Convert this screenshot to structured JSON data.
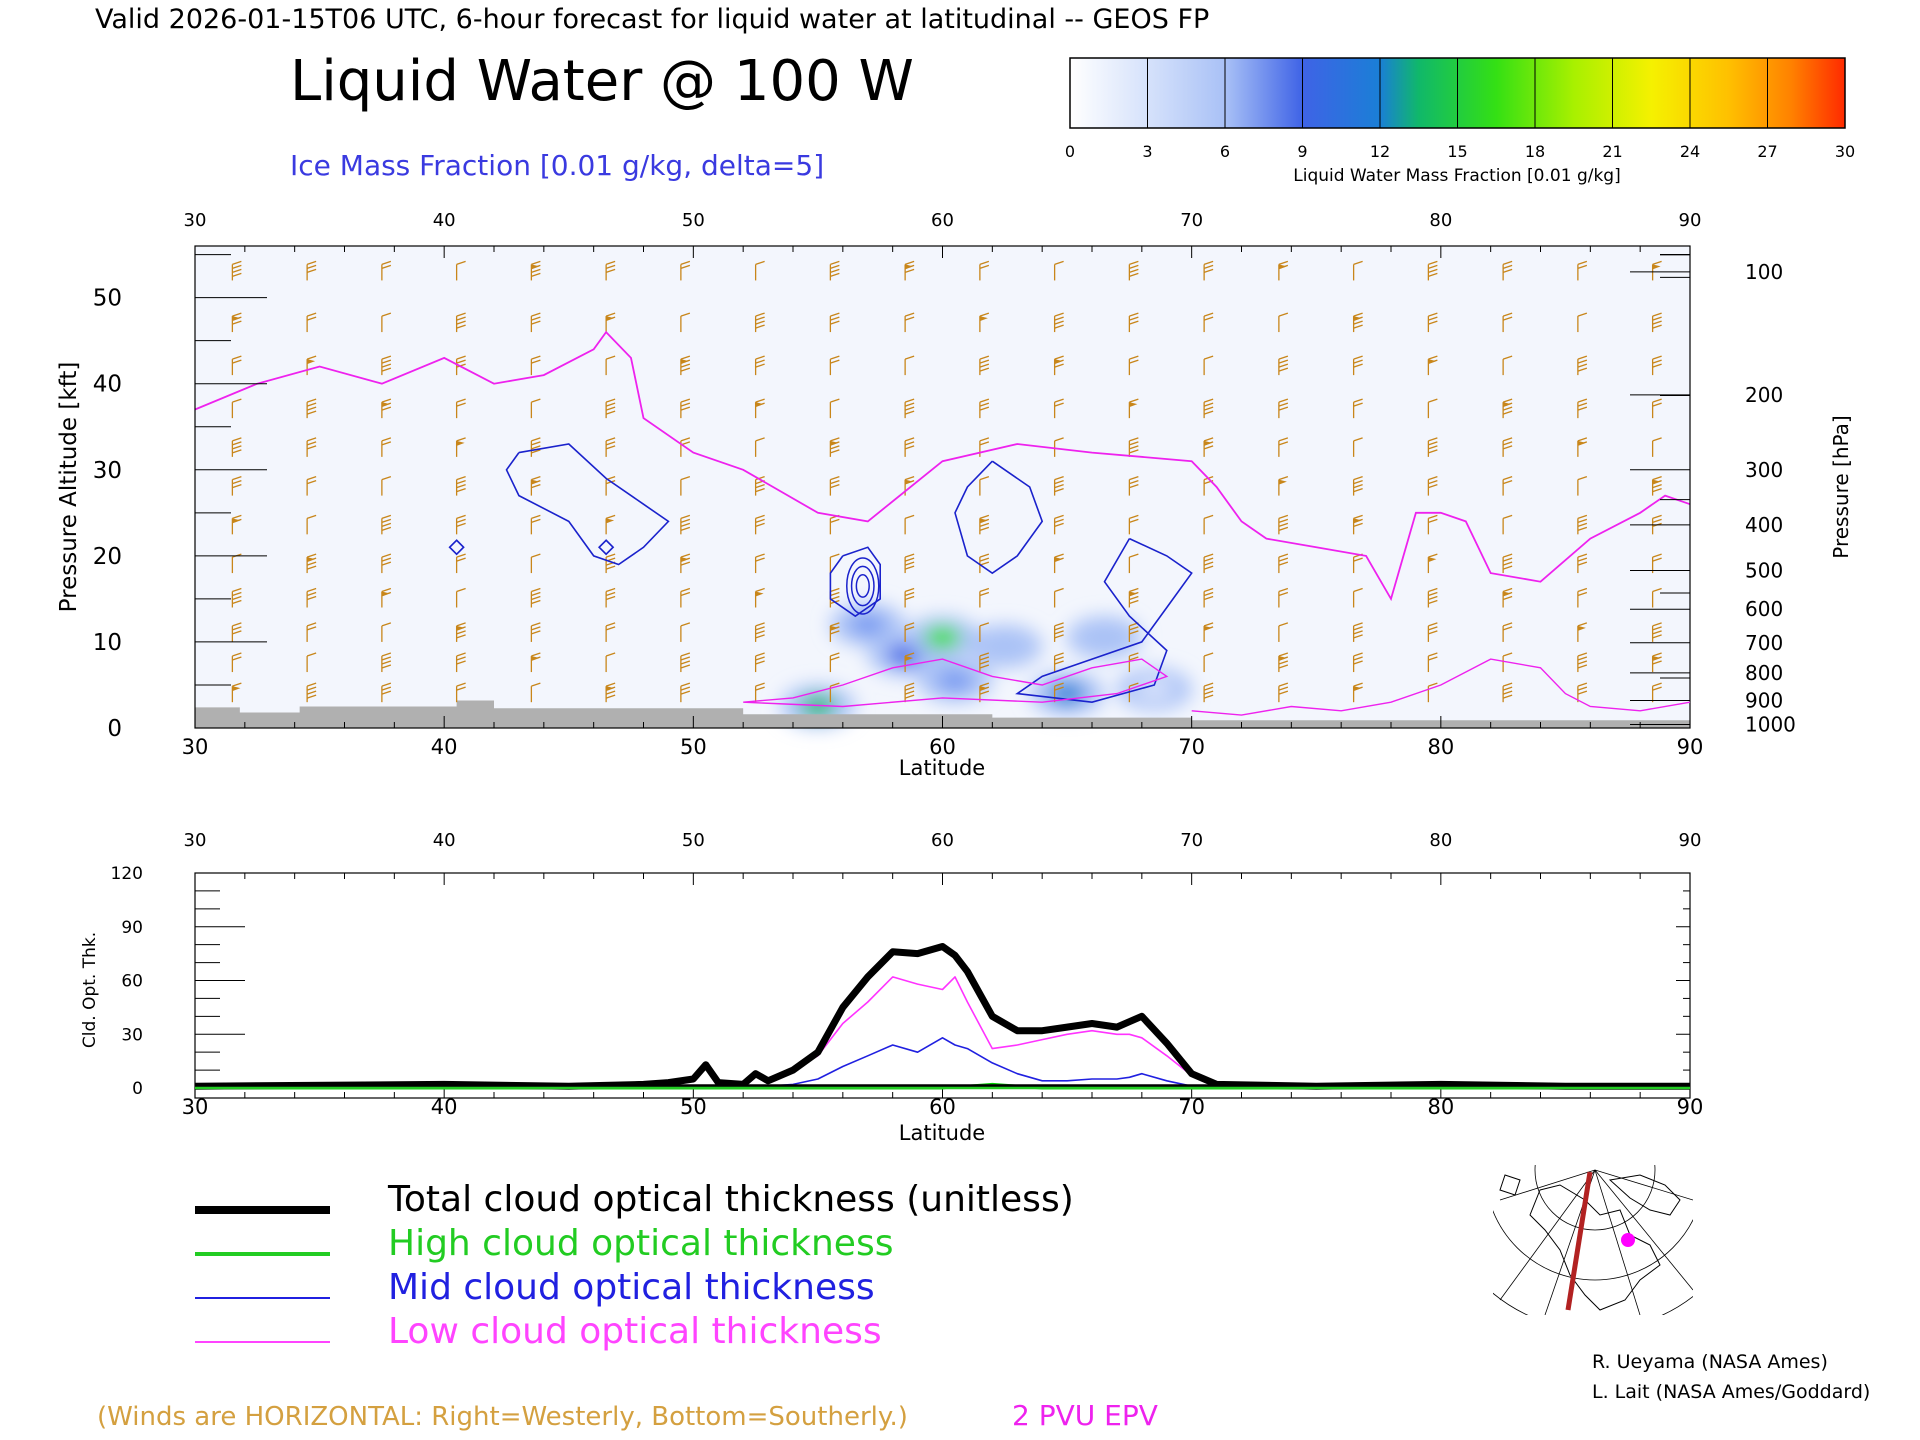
{
  "header": {
    "valid_line": "Valid 2026-01-15T06 UTC, 6-hour forecast for liquid water at latitudinal -- GEOS FP",
    "main_title": "Liquid Water @ 100 W",
    "contour_label": "Ice Mass Fraction [0.01 g/kg, delta=5]"
  },
  "colorbar": {
    "ticks": [
      "0",
      "3",
      "6",
      "9",
      "12",
      "15",
      "18",
      "21",
      "24",
      "27",
      "30"
    ],
    "label": "Liquid Water Mass Fraction [0.01 g/kg]",
    "colors": [
      "#f4f7fe",
      "#d8e3fb",
      "#a9c1f6",
      "#7799f0",
      "#3f63e6",
      "#1a7fd6",
      "#10b86a",
      "#34e014",
      "#a8f000",
      "#f5f100",
      "#ffd400",
      "#ff9f00",
      "#ff6a00",
      "#ff2a00"
    ]
  },
  "chart_data": [
    {
      "type": "heatmap",
      "title": "Liquid Water @ 100 W",
      "xlabel": "Latitude",
      "ylabel_left": "Pressure Altitude [kft]",
      "ylabel_right": "Pressure [hPa]",
      "xlim": [
        30,
        90
      ],
      "ylim": [
        0,
        56
      ],
      "x_ticks": [
        "30",
        "40",
        "50",
        "60",
        "70",
        "80",
        "90"
      ],
      "y_ticks_left": [
        "0",
        "10",
        "20",
        "30",
        "40",
        "50"
      ],
      "y_ticks_right": [
        "100",
        "200",
        "300",
        "400",
        "500",
        "600",
        "700",
        "800",
        "900",
        "1000"
      ],
      "liquid_water_blobs": [
        {
          "lat": 57.0,
          "alt": 12.0,
          "value": 7
        },
        {
          "lat": 58.5,
          "alt": 8.5,
          "value": 9
        },
        {
          "lat": 60.0,
          "alt": 10.5,
          "value": 15
        },
        {
          "lat": 60.5,
          "alt": 5.5,
          "value": 7
        },
        {
          "lat": 62.5,
          "alt": 9.5,
          "value": 5
        },
        {
          "lat": 65.0,
          "alt": 4.0,
          "value": 12
        },
        {
          "lat": 66.5,
          "alt": 10.5,
          "value": 4
        },
        {
          "lat": 55.0,
          "alt": 2.5,
          "value": 13
        },
        {
          "lat": 68.5,
          "alt": 4.5,
          "value": 3
        }
      ],
      "epv_2pvu_line": [
        [
          30,
          37
        ],
        [
          32.5,
          40
        ],
        [
          35,
          42
        ],
        [
          37.5,
          40
        ],
        [
          40,
          43
        ],
        [
          42,
          40
        ],
        [
          44,
          41
        ],
        [
          46,
          44
        ],
        [
          46.5,
          46
        ],
        [
          47.5,
          43
        ],
        [
          48,
          36
        ],
        [
          50,
          32
        ],
        [
          52,
          30
        ],
        [
          55,
          25
        ],
        [
          57,
          24
        ],
        [
          60,
          31
        ],
        [
          63,
          33
        ],
        [
          66,
          32
        ],
        [
          70,
          31
        ],
        [
          71,
          28
        ],
        [
          72,
          24
        ],
        [
          73,
          22
        ],
        [
          75,
          21
        ],
        [
          77,
          20
        ],
        [
          78,
          15
        ],
        [
          79,
          25
        ],
        [
          80,
          25
        ],
        [
          81,
          24
        ],
        [
          82,
          18
        ],
        [
          84,
          17
        ],
        [
          86,
          22
        ],
        [
          88,
          25
        ],
        [
          89,
          27
        ],
        [
          90,
          26
        ]
      ],
      "ice_contours": [
        [
          [
            43,
            32
          ],
          [
            45,
            33
          ],
          [
            46.5,
            29
          ],
          [
            48,
            26
          ],
          [
            49,
            24
          ],
          [
            48,
            21
          ],
          [
            47,
            19
          ],
          [
            46,
            20
          ],
          [
            45,
            24
          ],
          [
            43,
            27
          ],
          [
            42.5,
            30
          ],
          [
            43,
            32
          ]
        ],
        [
          [
            56,
            20
          ],
          [
            57,
            21
          ],
          [
            57.5,
            19
          ],
          [
            57.5,
            15
          ],
          [
            56.5,
            13
          ],
          [
            55.5,
            15
          ],
          [
            55.5,
            18
          ],
          [
            56,
            20
          ]
        ],
        [
          [
            62,
            31
          ],
          [
            63.5,
            28
          ],
          [
            64,
            24
          ],
          [
            63,
            20
          ],
          [
            62,
            18
          ],
          [
            61,
            20
          ],
          [
            60.5,
            25
          ],
          [
            61,
            28
          ],
          [
            62,
            31
          ]
        ],
        [
          [
            67.5,
            22
          ],
          [
            69,
            20
          ],
          [
            70,
            18
          ],
          [
            69,
            14
          ],
          [
            68,
            10
          ],
          [
            66,
            8
          ],
          [
            64,
            6
          ],
          [
            63,
            4
          ],
          [
            66,
            3
          ],
          [
            68.5,
            5
          ],
          [
            69,
            9
          ],
          [
            67.5,
            13
          ],
          [
            66.5,
            17
          ],
          [
            67.5,
            22
          ]
        ]
      ],
      "wind_barb_spacing_deg": 3,
      "ground_level_kft": 1.5
    },
    {
      "type": "line",
      "xlabel": "Latitude",
      "ylabel": "Cld. Opt. Thk.",
      "xlim": [
        30,
        90
      ],
      "ylim": [
        0,
        120
      ],
      "x_ticks": [
        "30",
        "40",
        "50",
        "60",
        "70",
        "80",
        "90"
      ],
      "y_ticks": [
        "0",
        "30",
        "60",
        "90",
        "120"
      ],
      "x": [
        30,
        40,
        45,
        48,
        49,
        50,
        50.5,
        51,
        52,
        52.5,
        53,
        54,
        55,
        56,
        57,
        58,
        59,
        60,
        60.5,
        61,
        62,
        63,
        64,
        65,
        66,
        67,
        67.5,
        68,
        69,
        70,
        71,
        75,
        80,
        85,
        90
      ],
      "series": [
        {
          "name": "Total cloud optical thickness (unitless)",
          "color": "#000000",
          "values": [
            1,
            2,
            1,
            2,
            3,
            5,
            13,
            3,
            2,
            8,
            4,
            10,
            20,
            45,
            62,
            76,
            75,
            79,
            74,
            65,
            40,
            32,
            32,
            34,
            36,
            34,
            37,
            40,
            25,
            8,
            2,
            1,
            2,
            1,
            1
          ]
        },
        {
          "name": "High cloud optical thickness",
          "color": "#00cc00",
          "values": [
            0,
            0,
            0,
            0,
            0,
            0,
            0,
            0,
            0,
            0,
            0,
            0,
            0,
            0,
            0,
            0,
            0,
            0,
            1,
            1,
            2,
            1,
            0,
            0,
            0,
            0,
            0,
            0,
            0,
            0,
            0,
            0,
            0,
            0,
            0
          ]
        },
        {
          "name": "Mid cloud optical thickness",
          "color": "#2020e0",
          "values": [
            0,
            0,
            0,
            0,
            0,
            0,
            0,
            0,
            0,
            1,
            1,
            2,
            5,
            12,
            18,
            24,
            20,
            28,
            24,
            22,
            14,
            8,
            4,
            4,
            5,
            5,
            6,
            8,
            4,
            1,
            0,
            0,
            0,
            0,
            0
          ]
        },
        {
          "name": "Low cloud optical thickness",
          "color": "#ff33ff",
          "values": [
            1,
            2,
            1,
            2,
            3,
            5,
            13,
            3,
            2,
            8,
            4,
            10,
            18,
            36,
            48,
            62,
            58,
            55,
            62,
            48,
            22,
            24,
            27,
            30,
            32,
            30,
            30,
            28,
            18,
            7,
            2,
            1,
            2,
            1,
            1
          ]
        }
      ]
    }
  ],
  "legend": {
    "total": "Total cloud optical thickness (unitless)",
    "high": "High cloud optical thickness",
    "mid": "Mid cloud optical thickness",
    "low": "Low cloud optical thickness"
  },
  "footer": {
    "winds_note": "(Winds are HORIZONTAL: Right=Westerly, Bottom=Southerly.)",
    "epv_label": "2 PVU EPV",
    "credit1": "R. Ueyama (NASA Ames)",
    "credit2": "L. Lait (NASA Ames/Goddard)"
  },
  "colors": {
    "wind": "#c8861a",
    "epv": "#ee22ee",
    "ice": "#1a22cc",
    "ground": "#b0b0b0",
    "ice_label": "#3a3ae0",
    "high": "#22cc22",
    "low": "#ff44ff"
  }
}
